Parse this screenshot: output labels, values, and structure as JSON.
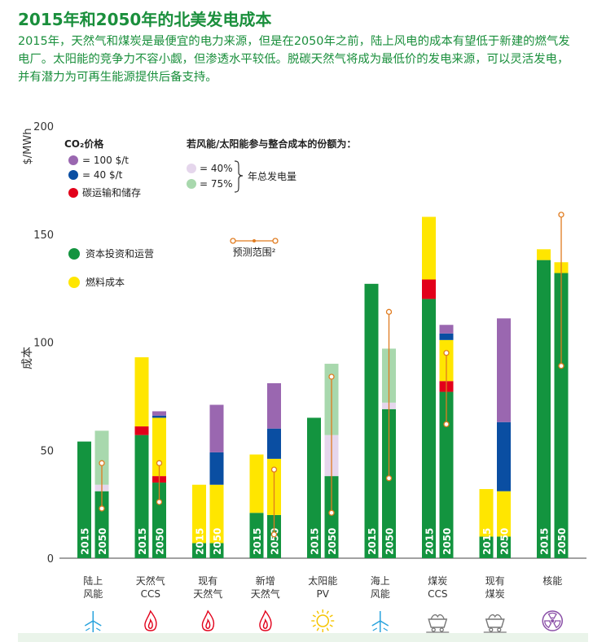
{
  "page": {
    "title": "2015年和2050年的北美发电成本",
    "subtitle": "2015年，天然气和煤炭是最便宜的电力来源，但是在2050年之前，陆上风电的成本有望低于新建的燃气发电厂。太阳能的竞争力不容小觑，但渗透水平较低。脱碳天然气将成为最低价的发电来源，可以灵活发电，并有潜力为可再生能源提供后备支持。"
  },
  "colors": {
    "capex_opex": "#13943f",
    "fuel": "#ffe600",
    "co2_100": "#9a67b0",
    "co2_40": "#0a4ea2",
    "transport_storage": "#e2001a",
    "integration_40": "#e5d6ec",
    "integration_75": "#a8d8ad",
    "range": "#e07b1f",
    "axis": "#444444",
    "title": "#1a8f3c"
  },
  "chart_data": {
    "type": "bar",
    "stacked": true,
    "yunit": "$/MWh",
    "ylabel": "成本",
    "ylim": [
      0,
      200
    ],
    "yticks": [
      0,
      50,
      100,
      150,
      200
    ],
    "years": [
      "2015",
      "2050"
    ],
    "categories": [
      {
        "label": "陆上\n风能",
        "icon": "wind-turbine-icon"
      },
      {
        "label": "天然气\nCCS",
        "icon": "flame-icon"
      },
      {
        "label": "现有\n天然气",
        "icon": "flame-icon"
      },
      {
        "label": "新增\n天然气",
        "icon": "flame-icon"
      },
      {
        "label": "太阳能\nPV",
        "icon": "sun-icon"
      },
      {
        "label": "海上\n风能",
        "icon": "wind-turbine-icon"
      },
      {
        "label": "煤炭\nCCS",
        "icon": "coal-cart-icon"
      },
      {
        "label": "现有\n煤炭",
        "icon": "coal-cart-icon"
      },
      {
        "label": "核能",
        "icon": "radiation-icon"
      }
    ],
    "bars": [
      {
        "cat": 0,
        "year": "2015",
        "segments": [
          {
            "s": "capex_opex",
            "v": 54
          }
        ]
      },
      {
        "cat": 0,
        "year": "2050",
        "segments": [
          {
            "s": "capex_opex",
            "v": 31
          },
          {
            "s": "integration_40",
            "v": 3
          },
          {
            "s": "integration_75",
            "v": 25
          }
        ],
        "range": [
          23,
          44
        ]
      },
      {
        "cat": 1,
        "year": "2015",
        "segments": [
          {
            "s": "capex_opex",
            "v": 57
          },
          {
            "s": "transport_storage",
            "v": 4
          },
          {
            "s": "fuel",
            "v": 32
          }
        ]
      },
      {
        "cat": 1,
        "year": "2050",
        "segments": [
          {
            "s": "capex_opex",
            "v": 35
          },
          {
            "s": "transport_storage",
            "v": 3
          },
          {
            "s": "fuel",
            "v": 27
          },
          {
            "s": "co2_40",
            "v": 1
          },
          {
            "s": "co2_100",
            "v": 2
          }
        ],
        "range": [
          26,
          44
        ]
      },
      {
        "cat": 2,
        "year": "2015",
        "segments": [
          {
            "s": "capex_opex",
            "v": 7
          },
          {
            "s": "fuel",
            "v": 27
          }
        ]
      },
      {
        "cat": 2,
        "year": "2050",
        "segments": [
          {
            "s": "capex_opex",
            "v": 7
          },
          {
            "s": "fuel",
            "v": 27
          },
          {
            "s": "co2_40",
            "v": 15
          },
          {
            "s": "co2_100",
            "v": 22
          }
        ]
      },
      {
        "cat": 3,
        "year": "2015",
        "segments": [
          {
            "s": "capex_opex",
            "v": 21
          },
          {
            "s": "fuel",
            "v": 27
          }
        ]
      },
      {
        "cat": 3,
        "year": "2050",
        "segments": [
          {
            "s": "capex_opex",
            "v": 20
          },
          {
            "s": "fuel",
            "v": 26
          },
          {
            "s": "co2_40",
            "v": 14
          },
          {
            "s": "co2_100",
            "v": 21
          }
        ],
        "range": [
          11,
          41
        ]
      },
      {
        "cat": 4,
        "year": "2015",
        "segments": [
          {
            "s": "capex_opex",
            "v": 65
          }
        ]
      },
      {
        "cat": 4,
        "year": "2050",
        "segments": [
          {
            "s": "capex_opex",
            "v": 38
          },
          {
            "s": "integration_40",
            "v": 19
          },
          {
            "s": "integration_75",
            "v": 33
          }
        ],
        "range": [
          21,
          84
        ]
      },
      {
        "cat": 5,
        "year": "2015",
        "segments": [
          {
            "s": "capex_opex",
            "v": 127
          }
        ]
      },
      {
        "cat": 5,
        "year": "2050",
        "segments": [
          {
            "s": "capex_opex",
            "v": 69
          },
          {
            "s": "integration_40",
            "v": 3
          },
          {
            "s": "integration_75",
            "v": 25
          }
        ],
        "range": [
          37,
          114
        ]
      },
      {
        "cat": 6,
        "year": "2015",
        "segments": [
          {
            "s": "capex_opex",
            "v": 120
          },
          {
            "s": "transport_storage",
            "v": 9
          },
          {
            "s": "fuel",
            "v": 29
          }
        ]
      },
      {
        "cat": 6,
        "year": "2050",
        "segments": [
          {
            "s": "capex_opex",
            "v": 77
          },
          {
            "s": "transport_storage",
            "v": 5
          },
          {
            "s": "fuel",
            "v": 19
          },
          {
            "s": "co2_40",
            "v": 3
          },
          {
            "s": "co2_100",
            "v": 4
          }
        ],
        "range": [
          62,
          95
        ]
      },
      {
        "cat": 7,
        "year": "2015",
        "segments": [
          {
            "s": "capex_opex",
            "v": 10
          },
          {
            "s": "fuel",
            "v": 22
          }
        ]
      },
      {
        "cat": 7,
        "year": "2050",
        "segments": [
          {
            "s": "capex_opex",
            "v": 10
          },
          {
            "s": "fuel",
            "v": 21
          },
          {
            "s": "co2_40",
            "v": 32
          },
          {
            "s": "co2_100",
            "v": 48
          }
        ]
      },
      {
        "cat": 8,
        "year": "2015",
        "segments": [
          {
            "s": "capex_opex",
            "v": 138
          },
          {
            "s": "fuel",
            "v": 5
          }
        ]
      },
      {
        "cat": 8,
        "year": "2050",
        "segments": [
          {
            "s": "capex_opex",
            "v": 132
          },
          {
            "s": "fuel",
            "v": 5
          }
        ],
        "range": [
          89,
          159
        ]
      }
    ],
    "legend": {
      "co2_title": "CO₂价格",
      "co2_100": "= 100 $/t",
      "co2_40": "= 40 $/t",
      "transport_storage": "碳运输和储存",
      "integration_title": "若风能/太阳能参与整合成本的份额为：",
      "integration_40": "= 40%",
      "integration_75": "= 75%",
      "integration_note": "年总发电量",
      "range": "预测范围²",
      "capex_opex": "资本投资和运营",
      "fuel": "燃料成本"
    }
  }
}
